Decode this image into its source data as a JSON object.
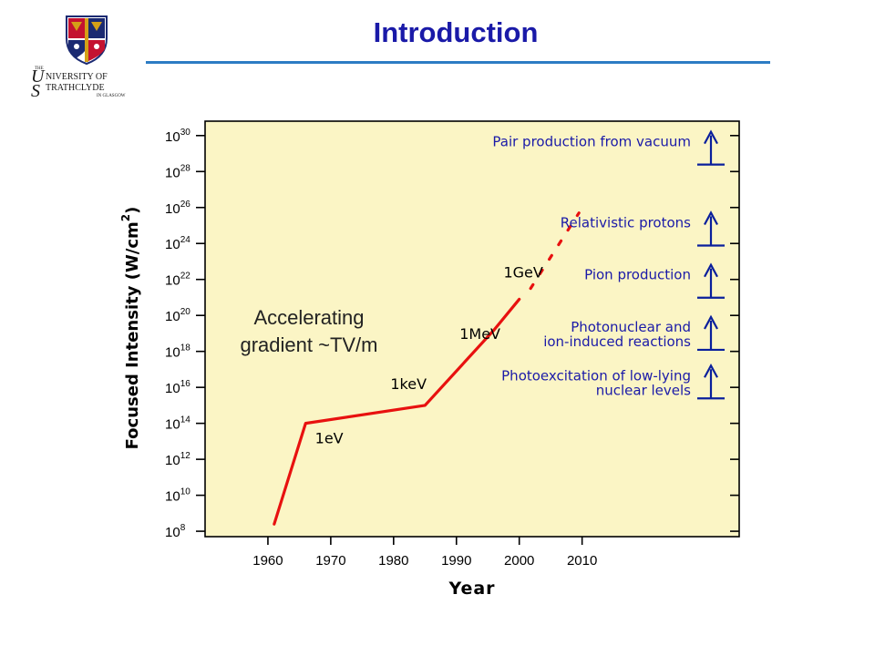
{
  "slide": {
    "title": "Introduction"
  },
  "logo": {
    "the": "THE",
    "u": "U",
    "niversity_of": "NIVERSITY OF",
    "s": "S",
    "trathclyde": "TRATHCLYDE",
    "in_glasgow": "IN GLASGOW",
    "colors": {
      "navy": "#1b2a72",
      "red": "#c41230",
      "gold": "#d4a017"
    }
  },
  "chart_data": {
    "type": "line",
    "xlabel": "Year",
    "ylabel_prefix": "Focused Intensity (W/cm",
    "ylabel_sup": "2",
    "ylabel_suffix": ")",
    "xlim": [
      1950,
      2035
    ],
    "ylim_log10": [
      7.7,
      30.8
    ],
    "y_scale": "log",
    "x_ticks": [
      1960,
      1970,
      1980,
      1990,
      2000,
      2010
    ],
    "y_ticks": [
      {
        "exp": 8,
        "base": "10",
        "sup": "8"
      },
      {
        "exp": 10,
        "base": "10",
        "sup": "10"
      },
      {
        "exp": 12,
        "base": "10",
        "sup": "12"
      },
      {
        "exp": 14,
        "base": "10",
        "sup": "14"
      },
      {
        "exp": 16,
        "base": "10",
        "sup": "16"
      },
      {
        "exp": 18,
        "base": "10",
        "sup": "18"
      },
      {
        "exp": 20,
        "base": "10",
        "sup": "20"
      },
      {
        "exp": 22,
        "base": "10",
        "sup": "22"
      },
      {
        "exp": 24,
        "base": "10",
        "sup": "24"
      },
      {
        "exp": 26,
        "base": "10",
        "sup": "26"
      },
      {
        "exp": 28,
        "base": "10",
        "sup": "28"
      },
      {
        "exp": 30,
        "base": "10",
        "sup": "30"
      }
    ],
    "series": [
      {
        "style": "solid",
        "color": "#e8110f",
        "points": [
          [
            1961,
            8.4
          ],
          [
            1966,
            14.0
          ],
          [
            1985,
            15.0
          ],
          [
            1996,
            19.2
          ],
          [
            2000,
            20.9
          ]
        ]
      },
      {
        "style": "dashed",
        "color": "#e8110f",
        "points": [
          [
            2001.8,
            21.5
          ],
          [
            2009.5,
            25.7
          ]
        ]
      }
    ],
    "energy_labels": [
      {
        "text": "1eV",
        "x": 1967.5,
        "y": 12.9
      },
      {
        "text": "1keV",
        "x": 1979.5,
        "y": 15.9
      },
      {
        "text": "1MeV",
        "x": 1990.5,
        "y": 18.7
      },
      {
        "text": "1GeV",
        "x": 1997.5,
        "y": 22.1
      }
    ],
    "regime_labels": [
      {
        "lines": [
          "Pair production from vacuum"
        ],
        "y": 29.4
      },
      {
        "lines": [
          "Relativistic protons"
        ],
        "y": 24.9
      },
      {
        "lines": [
          "Pion production"
        ],
        "y": 22.0
      },
      {
        "lines": [
          "Photonuclear and",
          "ion-induced reactions"
        ],
        "y": 19.1
      },
      {
        "lines": [
          "Photoexcitation of low-lying",
          "nuclear levels"
        ],
        "y": 16.4
      }
    ],
    "annotation": {
      "lines": [
        "Accelerating",
        "gradient ~TV/m"
      ]
    },
    "colors": {
      "plot_bg": "#fbf5c5",
      "line": "#e8110f",
      "label_blue": "#1a1aa8",
      "arrow_blue": "#0a1f9c",
      "axis": "#000000"
    }
  }
}
